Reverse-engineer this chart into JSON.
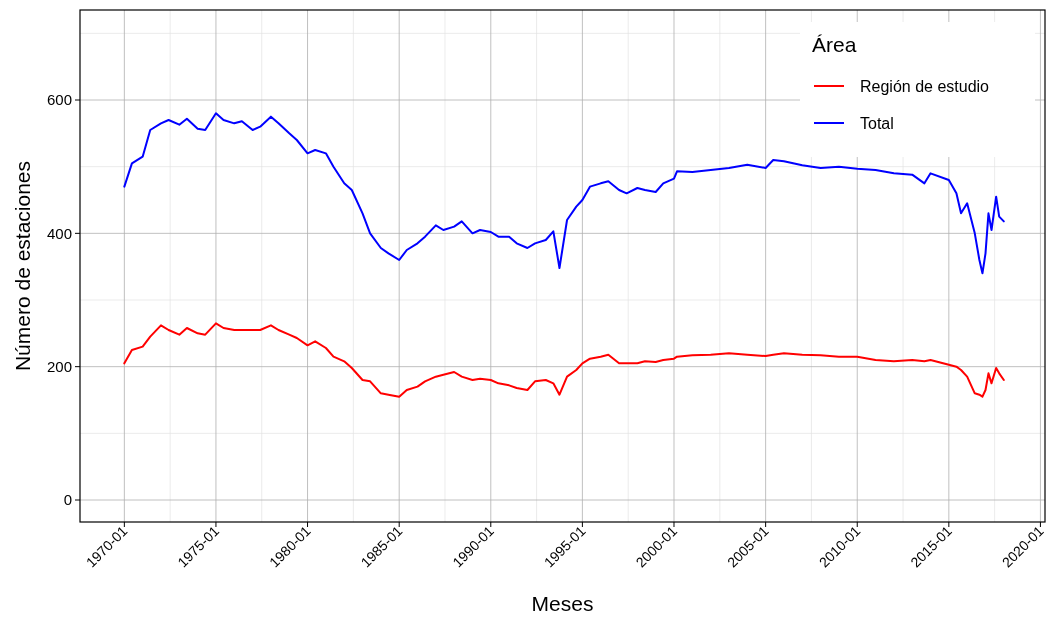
{
  "chart_data": {
    "type": "line",
    "xlabel": "Meses",
    "ylabel": "Número de estaciones",
    "legend_title": "Área",
    "legend": "top right",
    "grid": true,
    "x": [
      "1970-01",
      "1970-06",
      "1971-01",
      "1971-06",
      "1972-01",
      "1972-06",
      "1973-01",
      "1973-06",
      "1974-01",
      "1974-06",
      "1975-01",
      "1975-06",
      "1976-01",
      "1976-06",
      "1977-01",
      "1977-06",
      "1978-01",
      "1978-06",
      "1979-01",
      "1979-06",
      "1980-01",
      "1980-06",
      "1981-01",
      "1981-06",
      "1982-01",
      "1982-06",
      "1983-01",
      "1983-06",
      "1984-01",
      "1984-06",
      "1985-01",
      "1985-06",
      "1986-01",
      "1986-06",
      "1987-01",
      "1987-06",
      "1988-01",
      "1988-06",
      "1989-01",
      "1989-06",
      "1990-01",
      "1990-06",
      "1991-01",
      "1991-06",
      "1992-01",
      "1992-06",
      "1993-01",
      "1993-06",
      "1993-10",
      "1994-03",
      "1994-09",
      "1995-01",
      "1995-06",
      "1996-01",
      "1996-06",
      "1997-01",
      "1997-06",
      "1998-01",
      "1998-06",
      "1999-01",
      "1999-06",
      "2000-01",
      "2000-03",
      "2001-01",
      "2002-01",
      "2003-01",
      "2004-01",
      "2005-01",
      "2005-06",
      "2006-01",
      "2007-01",
      "2008-01",
      "2009-01",
      "2010-01",
      "2011-01",
      "2012-01",
      "2013-01",
      "2013-09",
      "2014-01",
      "2015-01",
      "2015-06",
      "2015-09",
      "2016-01",
      "2016-06",
      "2016-09",
      "2016-11",
      "2017-01",
      "2017-03",
      "2017-05",
      "2017-08",
      "2017-10",
      "2018-01"
    ],
    "series": [
      {
        "name": "Región de estudio",
        "color": "#ff0000",
        "values": [
          205,
          225,
          230,
          245,
          262,
          255,
          248,
          258,
          250,
          248,
          265,
          258,
          255,
          255,
          255,
          255,
          262,
          255,
          248,
          243,
          232,
          238,
          228,
          215,
          208,
          198,
          180,
          178,
          160,
          158,
          155,
          165,
          170,
          178,
          185,
          188,
          192,
          185,
          180,
          182,
          180,
          175,
          172,
          168,
          165,
          178,
          180,
          175,
          158,
          185,
          195,
          205,
          212,
          215,
          218,
          205,
          205,
          205,
          208,
          207,
          210,
          212,
          215,
          217,
          218,
          220,
          218,
          216,
          218,
          220,
          218,
          217,
          215,
          215,
          210,
          208,
          210,
          208,
          210,
          203,
          200,
          195,
          185,
          160,
          158,
          155,
          165,
          190,
          175,
          198,
          190,
          180
        ]
      },
      {
        "name": "Total",
        "color": "#0000ff",
        "values": [
          470,
          505,
          515,
          555,
          565,
          570,
          563,
          572,
          557,
          555,
          580,
          570,
          565,
          568,
          555,
          560,
          575,
          565,
          550,
          540,
          520,
          525,
          520,
          500,
          475,
          465,
          430,
          400,
          378,
          370,
          360,
          375,
          385,
          395,
          412,
          405,
          410,
          418,
          400,
          405,
          402,
          395,
          395,
          385,
          378,
          385,
          390,
          403,
          348,
          420,
          440,
          450,
          470,
          475,
          478,
          465,
          460,
          468,
          465,
          462,
          475,
          482,
          493,
          492,
          495,
          498,
          503,
          498,
          510,
          508,
          502,
          498,
          500,
          497,
          495,
          490,
          488,
          475,
          490,
          480,
          460,
          430,
          445,
          400,
          360,
          340,
          370,
          430,
          405,
          455,
          425,
          418
        ]
      }
    ],
    "xlim": [
      "1967-08",
      "2020-04"
    ],
    "xticks": [
      {
        "value": "1970-01",
        "label": "1970-01"
      },
      {
        "value": "1975-01",
        "label": "1975-01"
      },
      {
        "value": "1980-01",
        "label": "1980-01"
      },
      {
        "value": "1985-01",
        "label": "1985-01"
      },
      {
        "value": "1990-01",
        "label": "1990-01"
      },
      {
        "value": "1995-01",
        "label": "1995-01"
      },
      {
        "value": "2000-01",
        "label": "2000-01"
      },
      {
        "value": "2005-01",
        "label": "2005-01"
      },
      {
        "value": "2010-01",
        "label": "2010-01"
      },
      {
        "value": "2015-01",
        "label": "2015-01"
      },
      {
        "value": "2020-01",
        "label": "2020-01"
      }
    ],
    "ylim": [
      -33,
      735
    ],
    "yticks": [
      0,
      200,
      400,
      600
    ]
  }
}
